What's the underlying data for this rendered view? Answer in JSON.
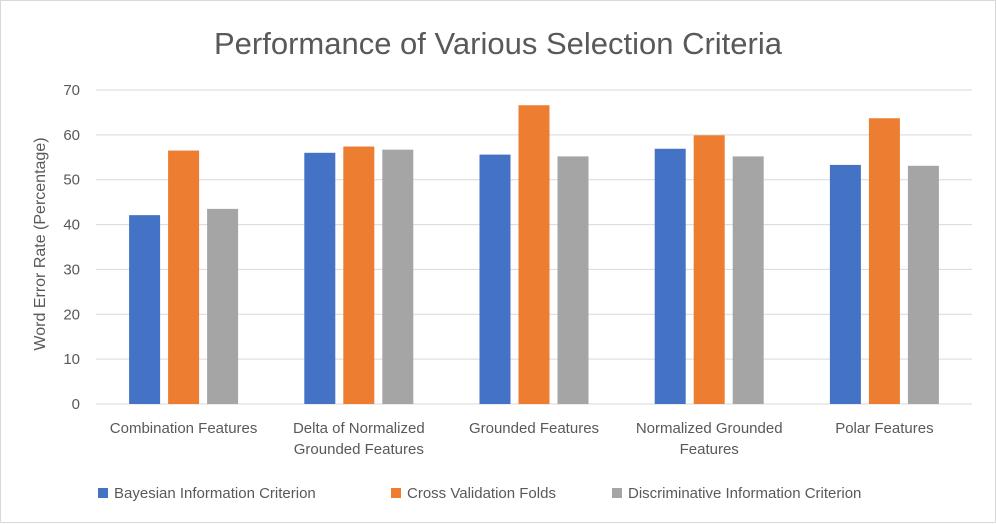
{
  "chart_data": {
    "type": "bar",
    "title": "Performance of Various Selection Criteria",
    "ylabel": "Word Error Rate (Percentage)",
    "xlabel": "",
    "ylim": [
      0,
      70
    ],
    "yticks": [
      0,
      10,
      20,
      30,
      40,
      50,
      60,
      70
    ],
    "grid": true,
    "legend_position": "bottom",
    "categories": [
      [
        "Combination Features"
      ],
      [
        "Delta of Normalized",
        "Grounded Features"
      ],
      [
        "Grounded Features"
      ],
      [
        "Normalized Grounded",
        "Features"
      ],
      [
        "Polar Features"
      ]
    ],
    "series": [
      {
        "name": "Bayesian Information Criterion",
        "color": "#4472c4",
        "values": [
          42.1,
          56.0,
          55.6,
          56.9,
          53.3
        ]
      },
      {
        "name": "Cross Validation Folds",
        "color": "#ed7d31",
        "values": [
          56.5,
          57.4,
          66.6,
          59.9,
          63.7
        ]
      },
      {
        "name": "Discriminative Information Criterion",
        "color": "#a5a5a5",
        "values": [
          43.5,
          56.7,
          55.2,
          55.2,
          53.1
        ]
      }
    ]
  }
}
